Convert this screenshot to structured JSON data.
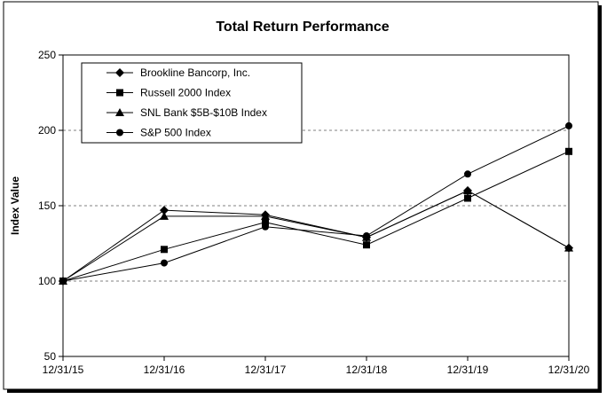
{
  "chart_data": {
    "type": "line",
    "title": "Total Return Performance",
    "xlabel": "",
    "ylabel": "Index Value",
    "categories": [
      "12/31/15",
      "12/31/16",
      "12/31/17",
      "12/31/18",
      "12/31/19",
      "12/31/20"
    ],
    "ylim": [
      50,
      250
    ],
    "yticks": [
      50,
      100,
      150,
      200,
      250
    ],
    "grid": "horizontal dashed",
    "legend": "top-left",
    "series": [
      {
        "name": "Brookline Bancorp, Inc.",
        "marker": "diamond",
        "values": [
          100,
          147,
          144,
          129,
          160,
          122
        ]
      },
      {
        "name": "Russell 2000 Index",
        "marker": "square",
        "values": [
          100,
          121,
          139,
          124,
          155,
          186
        ]
      },
      {
        "name": "SNL Bank $5B-$10B Index",
        "marker": "triangle",
        "values": [
          100,
          143,
          143,
          129,
          160,
          122
        ]
      },
      {
        "name": "S&P 500 Index",
        "marker": "circle",
        "values": [
          100,
          112,
          136,
          130,
          171,
          203
        ]
      }
    ],
    "colors": {
      "line": "#000000",
      "grid": "#808080",
      "border": "#000000",
      "background": "#ffffff"
    }
  }
}
